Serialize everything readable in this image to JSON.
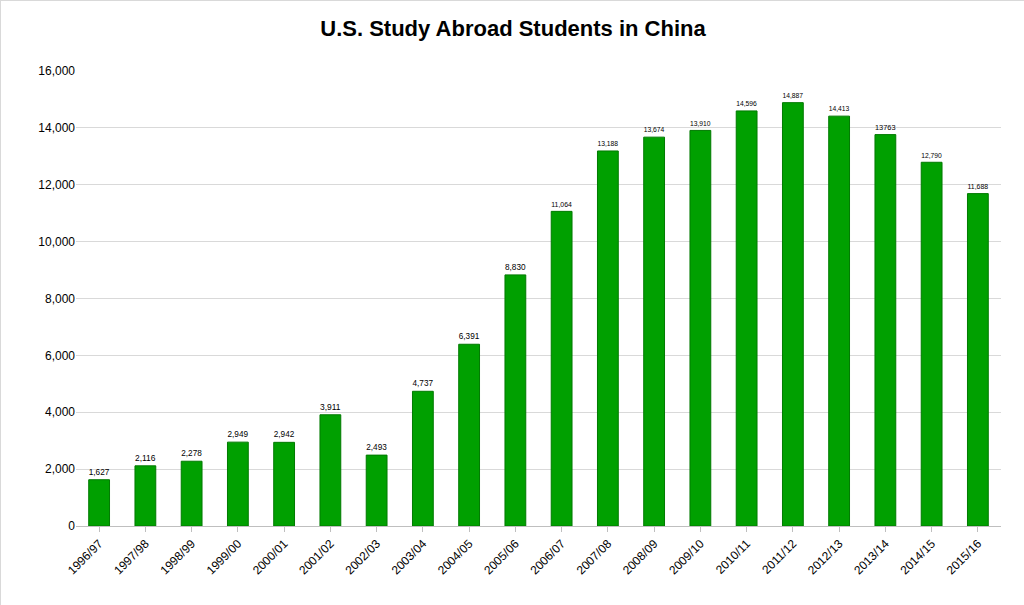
{
  "chart_data": {
    "type": "bar",
    "title": "U.S. Study Abroad Students in China",
    "categories": [
      "1996/97",
      "1997/98",
      "1998/99",
      "1999/00",
      "2000/01",
      "2001/02",
      "2002/03",
      "2003/04",
      "2004/05",
      "2005/06",
      "2006/07",
      "2007/08",
      "2008/09",
      "2009/10",
      "2010/11",
      "2011/12",
      "2012/13",
      "2013/14",
      "2014/15",
      "2015/16"
    ],
    "values": [
      1627,
      2116,
      2278,
      2949,
      2942,
      3911,
      2493,
      4737,
      6391,
      8830,
      11064,
      13188,
      13674,
      13910,
      14596,
      14887,
      14413,
      13763,
      12790,
      11688
    ],
    "value_labels": [
      "1,627",
      "2,116",
      "2,278",
      "2,949",
      "2,942",
      "3,911",
      "2,493",
      "4,737",
      "6,391",
      "8,830",
      "11,064",
      "13,188",
      "13,674",
      "13,910",
      "14,596",
      "14,887",
      "14,413",
      "13763",
      "12,790",
      "11,688"
    ],
    "color": "#00a000",
    "ylim": [
      0,
      16000
    ],
    "yticks": [
      0,
      {
        "value": 2000,
        "label": "2,000"
      },
      {
        "value": 4000,
        "label": "4,000"
      },
      {
        "value": 6000,
        "label": "6,000"
      },
      {
        "value": 8000,
        "label": "8,000"
      },
      {
        "value": 10000,
        "label": "10,000"
      },
      {
        "value": 12000,
        "label": "12,000"
      },
      {
        "value": 14000,
        "label": "14,000"
      },
      {
        "value": 16000,
        "label": "16,000"
      }
    ],
    "grid": true,
    "data_labels": true
  }
}
